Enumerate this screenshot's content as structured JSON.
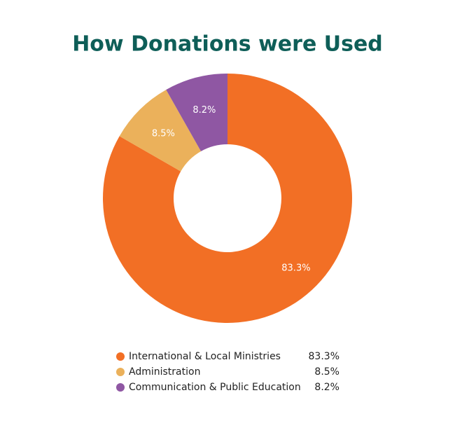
{
  "chart_data": {
    "type": "pie",
    "title": "How Donations were Used",
    "categories": [
      "International & Local Ministries",
      "Administration",
      "Communication & Public Education"
    ],
    "values": [
      83.3,
      8.5,
      8.2
    ],
    "value_labels": [
      "83.3%",
      "8.5%",
      "8.2%"
    ],
    "colors": [
      "#f26f25",
      "#ebb15b",
      "#8f57a3"
    ]
  }
}
